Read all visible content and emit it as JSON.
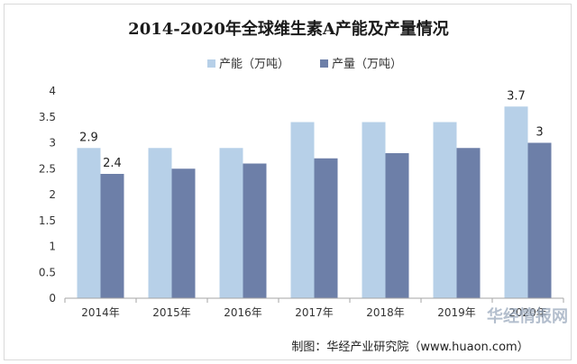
{
  "chart_data": {
    "type": "bar",
    "title": "2014-2020年全球维生素A产能及产量情况",
    "categories": [
      "2014年",
      "2015年",
      "2016年",
      "2017年",
      "2018年",
      "2019年",
      "2020年"
    ],
    "series": [
      {
        "name": "产能（万吨）",
        "values": [
          2.9,
          2.9,
          2.9,
          3.4,
          3.4,
          3.4,
          3.7
        ],
        "color": "#b7d0e8"
      },
      {
        "name": "产量（万吨）",
        "values": [
          2.4,
          2.5,
          2.6,
          2.7,
          2.8,
          2.9,
          3.0
        ],
        "color": "#6d7fa8"
      }
    ],
    "data_labels": [
      {
        "series": 0,
        "index": 0,
        "text": "2.9"
      },
      {
        "series": 1,
        "index": 0,
        "text": "2.4"
      },
      {
        "series": 0,
        "index": 6,
        "text": "3.7"
      },
      {
        "series": 1,
        "index": 6,
        "text": "3"
      }
    ],
    "ylim": [
      0,
      4
    ],
    "yticks": [
      "0",
      "0.5",
      "1",
      "1.5",
      "2",
      "2.5",
      "3",
      "3.5",
      "4"
    ],
    "xlabel": "",
    "ylabel": "",
    "legend_position": "top",
    "grid": false
  },
  "source": "制图：华经产业研究院（www.huaon.com）",
  "watermark": "华经情报网"
}
